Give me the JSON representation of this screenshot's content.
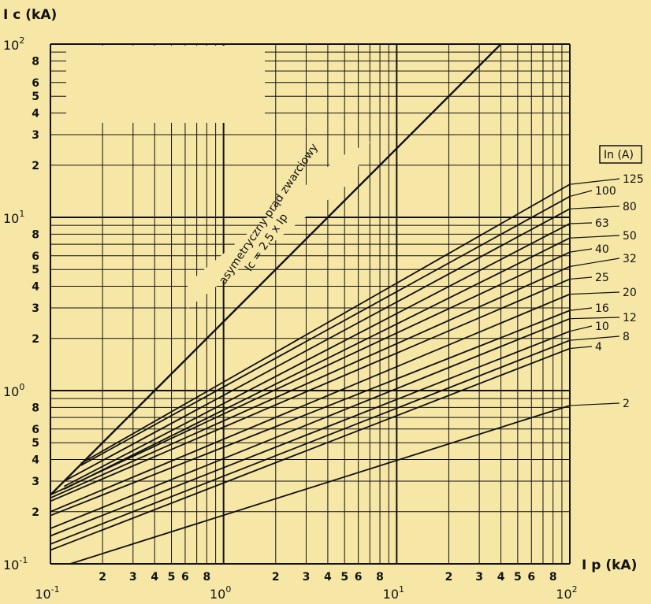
{
  "chart_data": {
    "type": "line",
    "title": "",
    "xlabel": "I p (kA)",
    "ylabel": "I c (kA)",
    "x_scale": "log",
    "y_scale": "log",
    "xlim": [
      0.1,
      100
    ],
    "ylim": [
      0.1,
      100
    ],
    "grid": true,
    "background_color": "#f6e7a6",
    "line_color": "#111111",
    "x_ticks_major": [
      {
        "value": 0.1,
        "base": "10",
        "exp": "-1"
      },
      {
        "value": 1,
        "base": "10",
        "exp": "0"
      },
      {
        "value": 10,
        "base": "10",
        "exp": "1"
      },
      {
        "value": 100,
        "base": "10",
        "exp": "2"
      }
    ],
    "x_ticks_minor_labels": [
      "2",
      "3",
      "4",
      "5",
      "6",
      "8"
    ],
    "y_ticks_major": [
      {
        "value": 0.1,
        "base": "10",
        "exp": "-1"
      },
      {
        "value": 1,
        "base": "10",
        "exp": "0"
      },
      {
        "value": 10,
        "base": "10",
        "exp": "1"
      },
      {
        "value": 100,
        "base": "10",
        "exp": "2"
      }
    ],
    "y_ticks_minor_labels": [
      "2",
      "3",
      "4",
      "5",
      "6",
      "8"
    ],
    "legend_title": "In (A)",
    "annotation_line1": "asymetryczny prąd zwarciowy",
    "annotation_line2": "Ic = 2,5 x Ip",
    "asymmetric_line": {
      "x": [
        0.1,
        40
      ],
      "y": [
        0.25,
        100
      ]
    },
    "series": [
      {
        "name": "125",
        "x_start": 0.15,
        "x": [
          0.15,
          100
        ],
        "y": [
          0.38,
          15.5
        ]
      },
      {
        "name": "100",
        "x_start": 0.15,
        "x": [
          0.15,
          100
        ],
        "y": [
          0.37,
          13.2
        ]
      },
      {
        "name": "80",
        "x_start": 0.12,
        "x": [
          0.12,
          100
        ],
        "y": [
          0.3,
          11.2
        ]
      },
      {
        "name": "63",
        "x_start": 0.12,
        "x": [
          0.12,
          100
        ],
        "y": [
          0.28,
          9.2
        ]
      },
      {
        "name": "50",
        "x_start": 0.12,
        "x": [
          0.12,
          100
        ],
        "y": [
          0.27,
          7.6
        ]
      },
      {
        "name": "40",
        "x_start": 0.1,
        "x": [
          0.1,
          100
        ],
        "y": [
          0.25,
          6.3
        ]
      },
      {
        "name": "32",
        "x_start": 0.1,
        "x": [
          0.1,
          100
        ],
        "y": [
          0.24,
          5.2
        ]
      },
      {
        "name": "25",
        "x_start": 0.1,
        "x": [
          0.1,
          100
        ],
        "y": [
          0.23,
          4.4
        ]
      },
      {
        "name": "20",
        "x_start": 0.1,
        "x": [
          0.1,
          100
        ],
        "y": [
          0.2,
          3.6
        ]
      },
      {
        "name": "16",
        "x_start": 0.1,
        "x": [
          0.1,
          100
        ],
        "y": [
          0.19,
          2.9
        ]
      },
      {
        "name": "12",
        "x_start": 0.1,
        "x": [
          0.1,
          100
        ],
        "y": [
          0.16,
          2.6
        ]
      },
      {
        "name": "10",
        "x_start": 0.1,
        "x": [
          0.1,
          100
        ],
        "y": [
          0.145,
          2.2
        ]
      },
      {
        "name": "8",
        "x_start": 0.1,
        "x": [
          0.1,
          100
        ],
        "y": [
          0.13,
          1.95
        ]
      },
      {
        "name": "4",
        "x_start": 0.1,
        "x": [
          0.1,
          100
        ],
        "y": [
          0.12,
          1.75
        ]
      },
      {
        "name": "2",
        "x_start": 0.13,
        "x": [
          0.13,
          100
        ],
        "y": [
          0.1,
          0.82
        ]
      }
    ]
  }
}
